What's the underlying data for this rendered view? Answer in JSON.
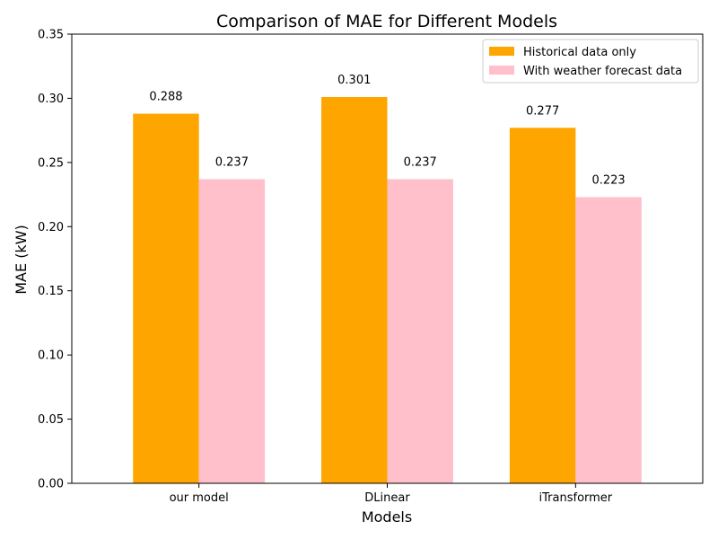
{
  "chart_data": {
    "type": "bar",
    "title": "Comparison of MAE for Different Models",
    "xlabel": "Models",
    "ylabel": "MAE (kW)",
    "categories": [
      "our model",
      "DLinear",
      "iTransformer"
    ],
    "series": [
      {
        "name": "Historical data only",
        "values": [
          0.288,
          0.301,
          0.277
        ],
        "color": "#FFA500",
        "labels": [
          "0.288",
          "0.301",
          "0.277"
        ]
      },
      {
        "name": "With weather forecast data",
        "values": [
          0.237,
          0.237,
          0.223
        ],
        "color": "#FFC0CB",
        "labels": [
          "0.237",
          "0.237",
          "0.223"
        ]
      }
    ],
    "ylim": [
      0,
      0.35
    ],
    "yticks": [
      0.0,
      0.05,
      0.1,
      0.15,
      0.2,
      0.25,
      0.3,
      0.35
    ],
    "ytick_labels": [
      "0.00",
      "0.05",
      "0.10",
      "0.15",
      "0.20",
      "0.25",
      "0.30",
      "0.35"
    ],
    "grid": false,
    "legend_position": "top-right"
  }
}
